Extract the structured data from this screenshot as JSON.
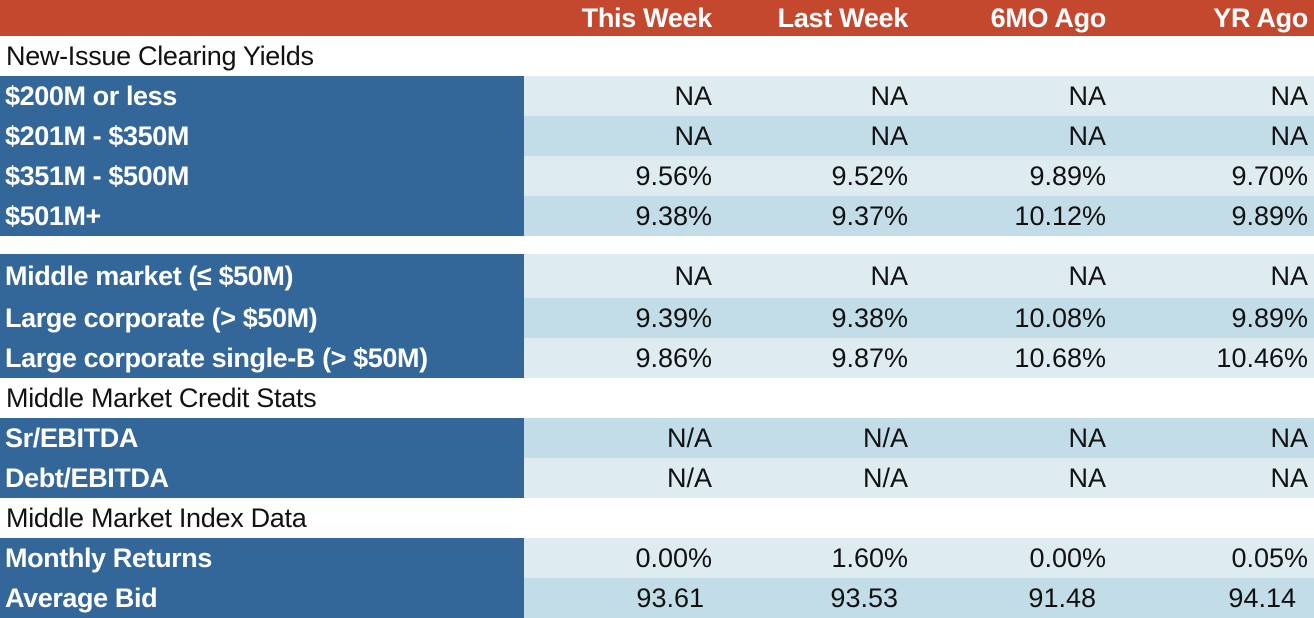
{
  "columns": [
    "This Week",
    "Last Week",
    "6MO Ago",
    "YR Ago"
  ],
  "sections": {
    "new_issue": "New-Issue Clearing Yields",
    "credit_stats": "Middle Market Credit Stats",
    "index_data": "Middle Market Index Data"
  },
  "rows": [
    {
      "label": "$200M or less",
      "values": [
        "NA",
        "NA",
        "NA",
        "NA"
      ]
    },
    {
      "label": "$201M - $350M",
      "values": [
        "NA",
        "NA",
        "NA",
        "NA"
      ]
    },
    {
      "label": "$351M - $500M",
      "values": [
        "9.56%",
        "9.52%",
        "9.89%",
        "9.70%"
      ]
    },
    {
      "label": "$501M+",
      "values": [
        "9.38%",
        "9.37%",
        "10.12%",
        "9.89%"
      ]
    },
    {
      "label": "Middle market (≤ $50M)",
      "values": [
        "NA",
        "NA",
        "NA",
        "NA"
      ]
    },
    {
      "label": "Large corporate (> $50M)",
      "values": [
        "9.39%",
        "9.38%",
        "10.08%",
        "9.89%"
      ]
    },
    {
      "label": "Large corporate single-B (> $50M)",
      "values": [
        "9.86%",
        "9.87%",
        "10.68%",
        "10.46%"
      ]
    },
    {
      "label": "Sr/EBITDA",
      "values": [
        "N/A",
        "N/A",
        "NA",
        "NA"
      ]
    },
    {
      "label": "Debt/EBITDA",
      "values": [
        "N/A",
        "N/A",
        "NA",
        "NA"
      ]
    },
    {
      "label": "Monthly Returns",
      "values": [
        "0.00%",
        "1.60%",
        "0.00%",
        "0.05%"
      ]
    },
    {
      "label": "Average Bid",
      "values": [
        "93.61",
        "93.53",
        "91.48",
        "94.14"
      ]
    }
  ],
  "colors": {
    "header_bg": "#c4482e",
    "label_bg": "#336699",
    "cell_light": "#deebf1",
    "cell_mid": "#c2dde8"
  }
}
